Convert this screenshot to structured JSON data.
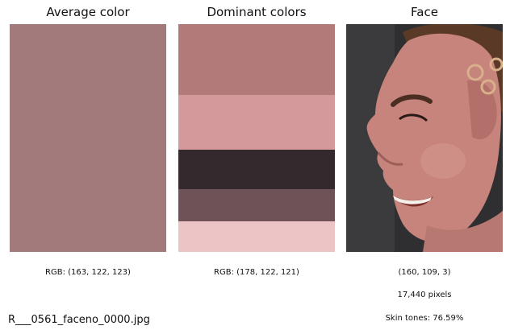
{
  "panels": {
    "average": {
      "title": "Average color",
      "color": "#a37a7b",
      "caption": "RGB: (163, 122, 123)"
    },
    "dominant": {
      "title": "Dominant colors",
      "caption": "RGB: (178, 122, 121)",
      "bands": [
        {
          "color": "#b27a79",
          "share": 0.31
        },
        {
          "color": "#d49a9b",
          "share": 0.24
        },
        {
          "color": "#342a2d",
          "share": 0.175
        },
        {
          "color": "#6e5257",
          "share": 0.14
        },
        {
          "color": "#ecc4c6",
          "share": 0.135
        }
      ]
    },
    "face": {
      "title": "Face",
      "caption_rgb": "(160, 109, 3)",
      "caption_pixels": "17,440 pixels",
      "caption_skin": "Skin tones: 76.59%"
    }
  },
  "filename": "R___0561_faceno_0000.jpg"
}
